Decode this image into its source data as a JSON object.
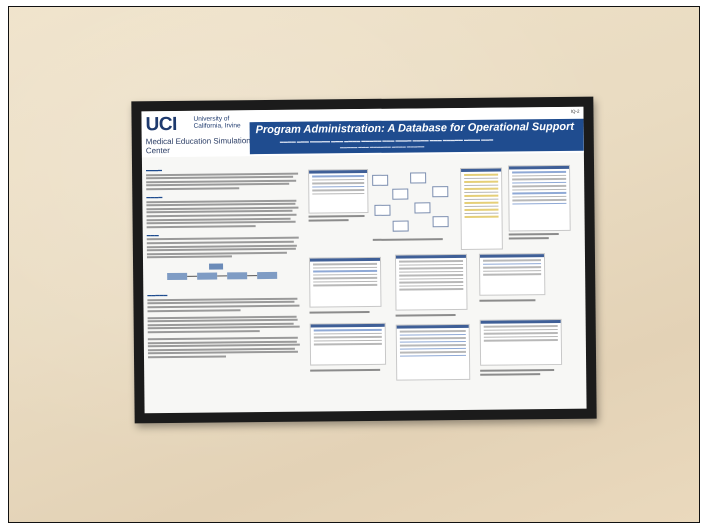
{
  "poster": {
    "logo": "UCI",
    "university": "University of California, Irvine",
    "center": "Medical Education Simulation Center",
    "title": "Program Administration: A Database for Operational Support",
    "code": "IQ-2"
  },
  "colors": {
    "wall": "#e9dbc1",
    "frame": "#1b1b1b",
    "title_bar": "#1f4c8f",
    "logo": "#1e3a6e"
  }
}
